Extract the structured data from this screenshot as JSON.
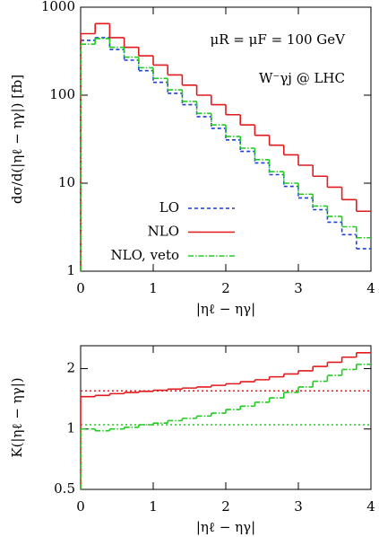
{
  "chart_data": [
    {
      "type": "histogram",
      "log_y": true,
      "ylabel": "dσ/d(|ηℓ − ηγ|) [fb]",
      "xlabel": "|ηℓ − ηγ|",
      "annotations": [
        "μR = μF = 100 GeV",
        "W⁻γj @ LHC"
      ],
      "bins": [
        0,
        0.2,
        0.4,
        0.6,
        0.8,
        1.0,
        1.2,
        1.4,
        1.6,
        1.8,
        2.0,
        2.2,
        2.4,
        2.6,
        2.8,
        3.0,
        3.2,
        3.4,
        3.6,
        3.8,
        4.0
      ],
      "xlim": [
        0,
        4
      ],
      "xticks": [
        0,
        1,
        2,
        3,
        4
      ],
      "ylim": [
        1,
        1000
      ],
      "yticks": [
        1,
        10,
        100,
        1000
      ],
      "legend": "lower-left",
      "series": [
        {
          "name": "LO",
          "color": "#1f3fd6",
          "style": "dashed",
          "values": [
            420,
            450,
            330,
            250,
            190,
            140,
            105,
            78,
            57,
            42,
            31,
            23,
            17,
            12.5,
            9.2,
            6.8,
            5,
            3.6,
            2.6,
            1.8
          ]
        },
        {
          "name": "NLO",
          "color": "#e31a1c",
          "style": "solid",
          "values": [
            500,
            650,
            450,
            350,
            280,
            220,
            170,
            130,
            100,
            78,
            60,
            46,
            35,
            27,
            21,
            16,
            12,
            9,
            6.5,
            4.8
          ]
        },
        {
          "name": "NLO, veto",
          "color": "#22cc22",
          "style": "dashdot",
          "values": [
            380,
            440,
            350,
            270,
            205,
            155,
            115,
            85,
            62,
            46,
            34,
            25,
            18.5,
            13.5,
            10,
            7.5,
            5.5,
            4.2,
            3.2,
            2.4
          ]
        }
      ]
    },
    {
      "type": "histogram",
      "log_y": true,
      "ylabel": "K(|ηℓ − ηγ|)",
      "xlabel": "|ηℓ − ηγ|",
      "bins": [
        0,
        0.2,
        0.4,
        0.6,
        0.8,
        1.0,
        1.2,
        1.4,
        1.6,
        1.8,
        2.0,
        2.2,
        2.4,
        2.6,
        2.8,
        3.0,
        3.2,
        3.4,
        3.6,
        3.8,
        4.0
      ],
      "xlim": [
        0,
        4
      ],
      "xticks": [
        0,
        1,
        2,
        3,
        4
      ],
      "ylim": [
        0.5,
        2.6
      ],
      "yticks": [
        0.5,
        1,
        2
      ],
      "series": [
        {
          "color": "#e31a1c",
          "style": "solid",
          "values": [
            1.45,
            1.47,
            1.5,
            1.52,
            1.54,
            1.56,
            1.58,
            1.6,
            1.62,
            1.65,
            1.68,
            1.72,
            1.76,
            1.82,
            1.88,
            1.95,
            2.05,
            2.15,
            2.28,
            2.4
          ]
        },
        {
          "color": "#22cc22",
          "style": "dashdot",
          "values": [
            1.0,
            0.98,
            1.0,
            1.02,
            1.05,
            1.07,
            1.1,
            1.13,
            1.16,
            1.2,
            1.25,
            1.3,
            1.36,
            1.43,
            1.52,
            1.62,
            1.73,
            1.85,
            1.98,
            2.1
          ]
        }
      ],
      "reference_lines": [
        {
          "color": "#e31a1c",
          "value": 1.55
        },
        {
          "color": "#22cc22",
          "value": 1.05
        }
      ]
    }
  ]
}
